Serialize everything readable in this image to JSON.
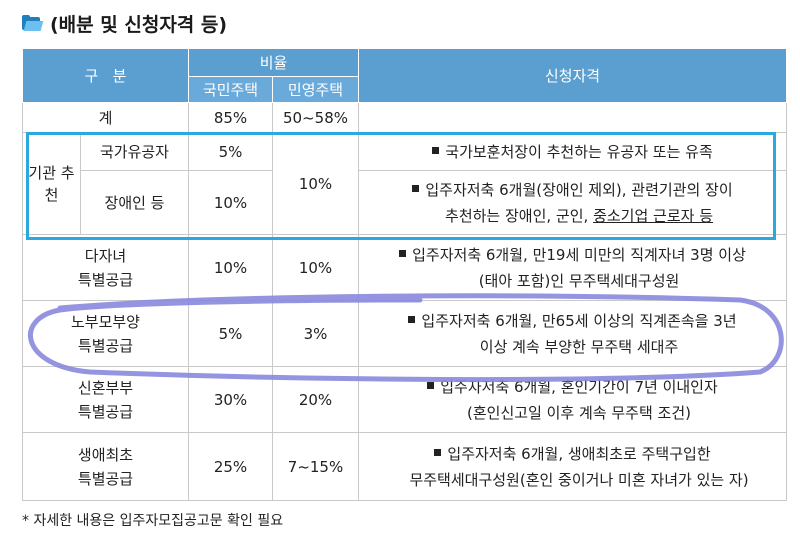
{
  "title": "(배분 및 신청자격 등)",
  "header": {
    "category": "구   분",
    "ratio": "비율",
    "national": "국민주택",
    "private": "민영주택",
    "qualification": "신청자격"
  },
  "total": {
    "label": "계",
    "national": "85%",
    "private": "50~58%"
  },
  "institutional": {
    "group_label": "기관 추천",
    "private_shared": "10%",
    "rows": [
      {
        "label": "국가유공자",
        "national": "5%",
        "lines": [
          "국가보훈처장이 추천하는 유공자 또는 유족"
        ]
      },
      {
        "label": "장애인 등",
        "national": "10%",
        "lines": [
          "입주자저축 6개월(장애인 제외), 관련기관의 장이",
          "추천하는 장애인, 군인, ",
          "중소기업 근로자 등"
        ]
      }
    ]
  },
  "multi_child": {
    "label1": "다자녀",
    "label2": "특별공급",
    "national": "10%",
    "private": "10%",
    "lines": [
      "입주자저축 6개월, 만19세 미만의 직계자녀 3명 이상",
      "(태아 포함)인 무주택세대구성원"
    ]
  },
  "elderly": {
    "label1": "노부모부양",
    "label2": "특별공급",
    "national": "5%",
    "private": "3%",
    "lines": [
      "입주자저축 6개월, 만65세 이상의 직계존속을 3년",
      "이상 계속 부양한 무주택 세대주"
    ]
  },
  "newlywed": {
    "label1": "신혼부부",
    "label2": "특별공급",
    "national": "30%",
    "private": "20%",
    "lines": [
      "입주자저축 6개월, 혼인기간이 7년 이내인자",
      "(혼인신고일 이후 계속 무주택 조건)"
    ]
  },
  "first_home": {
    "label1": "생애최초",
    "label2": "특별공급",
    "national": "25%",
    "private": "7~15%",
    "lines": [
      "입주자저축 6개월, 생애최초로 주택구입한",
      "무주택세대구성원(혼인 중이거나 미혼 자녀가 있는 자)"
    ]
  },
  "footnote": "* 자세한 내용은 입주자모집공고문 확인 필요",
  "colors": {
    "header": "#5b9fd1",
    "highlight_box": "#2ba8e0",
    "scribble": "#8888dd"
  },
  "icons": {
    "title": "folder-icon"
  }
}
